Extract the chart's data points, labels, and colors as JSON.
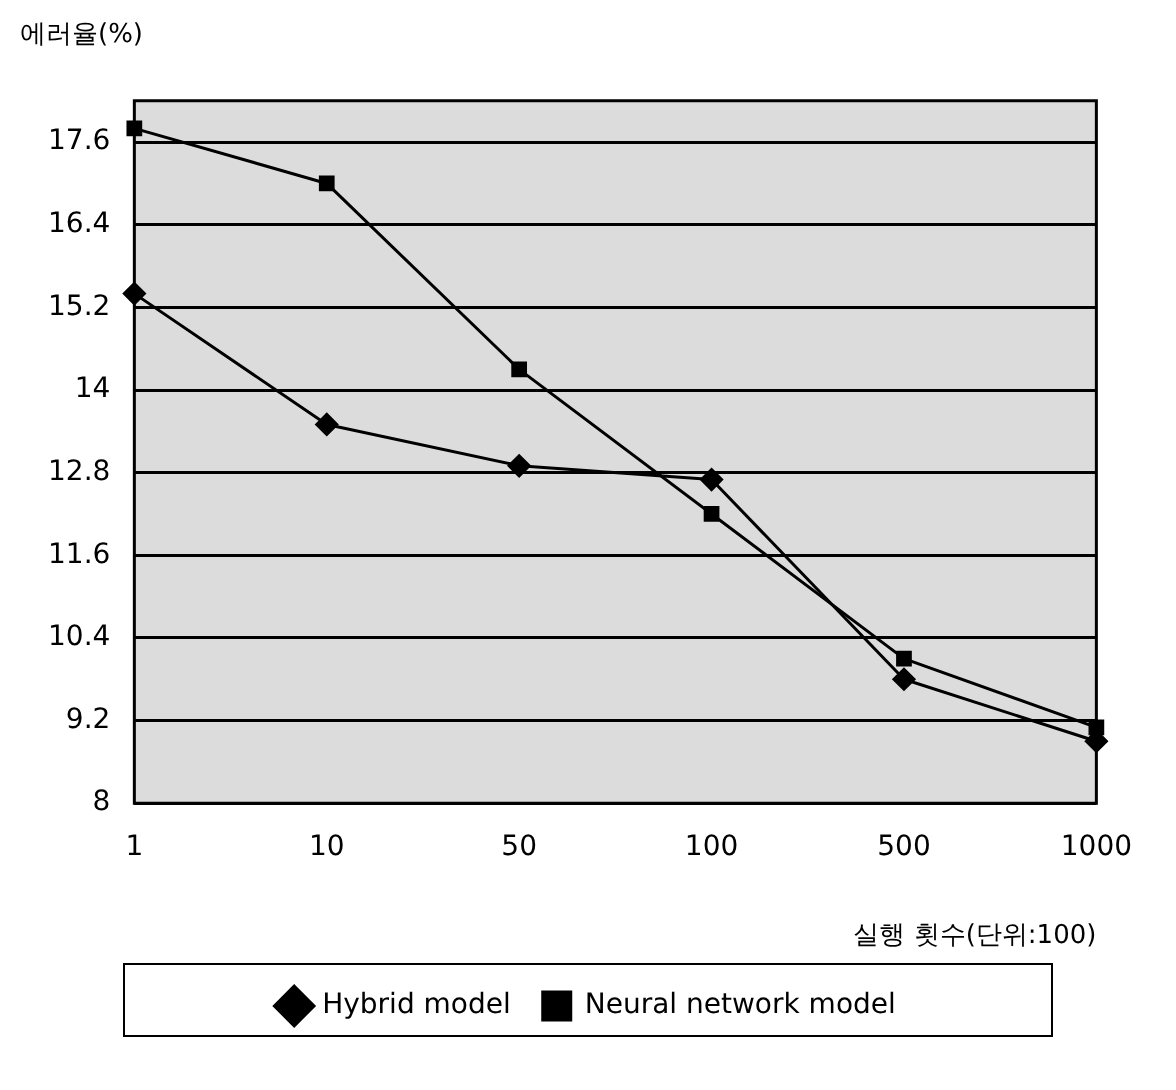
{
  "chart_data": {
    "type": "line",
    "ylabel": "에러율(%)",
    "xlabel": "실행 횟수(단위:100)",
    "categories": [
      "1",
      "10",
      "50",
      "100",
      "500",
      "1000"
    ],
    "series": [
      {
        "name": "Hybrid model",
        "color": "#000000",
        "marker": "diamond",
        "values": [
          15.4,
          13.5,
          12.9,
          12.7,
          9.8,
          8.9
        ]
      },
      {
        "name": "Neural network model",
        "color": "#000000",
        "marker": "square",
        "values": [
          17.8,
          17.0,
          14.3,
          12.2,
          10.1,
          9.1
        ]
      }
    ],
    "ylim": [
      8,
      18.2
    ],
    "yticks": [
      8,
      9.2,
      10.4,
      11.6,
      12.8,
      14,
      15.2,
      16.4,
      17.6
    ],
    "grid": "y",
    "legend": "bottom",
    "line_style": "solid"
  }
}
